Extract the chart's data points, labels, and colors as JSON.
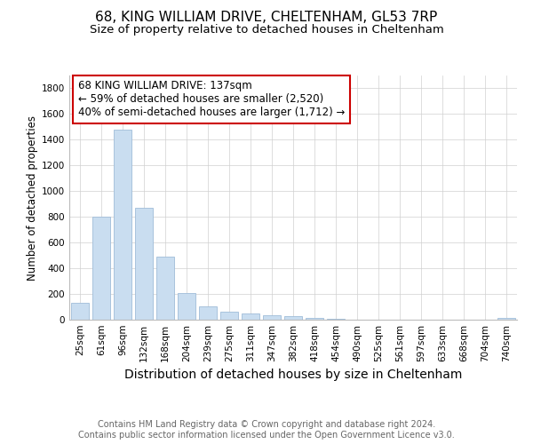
{
  "title": "68, KING WILLIAM DRIVE, CHELTENHAM, GL53 7RP",
  "subtitle": "Size of property relative to detached houses in Cheltenham",
  "xlabel": "Distribution of detached houses by size in Cheltenham",
  "ylabel": "Number of detached properties",
  "categories": [
    "25sqm",
    "61sqm",
    "96sqm",
    "132sqm",
    "168sqm",
    "204sqm",
    "239sqm",
    "275sqm",
    "311sqm",
    "347sqm",
    "382sqm",
    "418sqm",
    "454sqm",
    "490sqm",
    "525sqm",
    "561sqm",
    "597sqm",
    "633sqm",
    "668sqm",
    "704sqm",
    "740sqm"
  ],
  "values": [
    130,
    800,
    1480,
    870,
    490,
    205,
    105,
    65,
    50,
    35,
    25,
    15,
    5,
    3,
    2,
    1,
    1,
    0,
    0,
    0,
    12
  ],
  "bar_color": "#c9ddf0",
  "bar_edge_color": "#a0bcd8",
  "annotation_box_text": "68 KING WILLIAM DRIVE: 137sqm\n← 59% of detached houses are smaller (2,520)\n40% of semi-detached houses are larger (1,712) →",
  "annotation_box_color": "#cc0000",
  "ylim": [
    0,
    1900
  ],
  "yticks": [
    0,
    200,
    400,
    600,
    800,
    1000,
    1200,
    1400,
    1600,
    1800
  ],
  "background_color": "#ffffff",
  "grid_color": "#d0d0d0",
  "footer_text": "Contains HM Land Registry data © Crown copyright and database right 2024.\nContains public sector information licensed under the Open Government Licence v3.0.",
  "title_fontsize": 11,
  "subtitle_fontsize": 9.5,
  "xlabel_fontsize": 10,
  "ylabel_fontsize": 8.5,
  "tick_fontsize": 7.5,
  "annotation_fontsize": 8.5,
  "footer_fontsize": 7
}
